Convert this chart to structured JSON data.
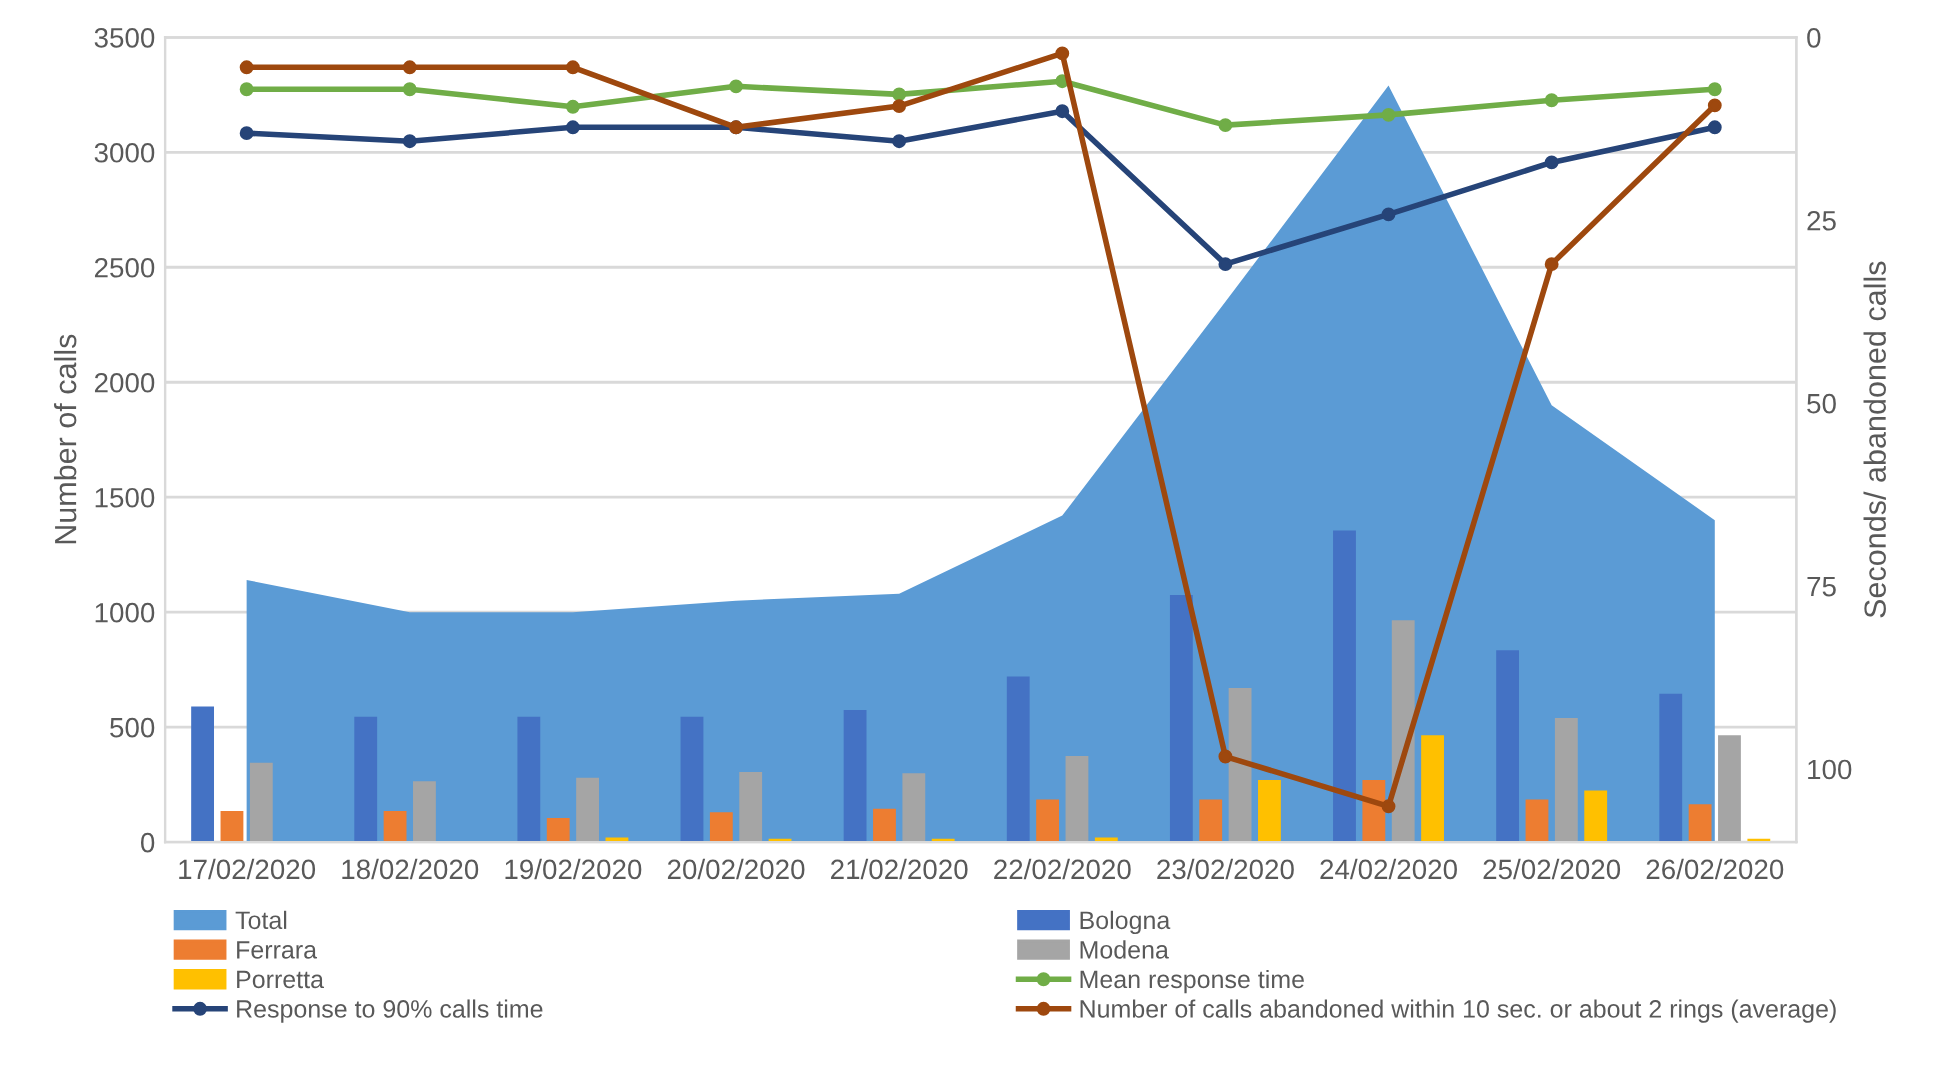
{
  "chart_data": {
    "type": "bar",
    "xlabel": null,
    "ylabel": "Number of calls",
    "y2label": "Seconds/ abandoned calls",
    "categories": [
      "17/02/2020",
      "18/02/2020",
      "19/02/2020",
      "20/02/2020",
      "21/02/2020",
      "22/02/2020",
      "23/02/2020",
      "24/02/2020",
      "25/02/2020",
      "26/02/2020"
    ],
    "series": [
      {
        "name": "Total",
        "type": "area",
        "color": "#5b9bd5",
        "values": [
          1140,
          1000,
          1000,
          1050,
          1080,
          1420,
          2350,
          3290,
          1900,
          1400
        ]
      },
      {
        "name": "Bologna",
        "color": "#4472c4",
        "values": [
          590,
          545,
          545,
          545,
          575,
          720,
          1075,
          1355,
          835,
          645
        ]
      },
      {
        "name": "Ferrara",
        "color": "#ed7d31",
        "values": [
          135,
          135,
          105,
          130,
          145,
          185,
          185,
          270,
          185,
          165
        ]
      },
      {
        "name": "Modena",
        "color": "#a5a5a5",
        "values": [
          345,
          265,
          280,
          305,
          300,
          375,
          670,
          965,
          540,
          465
        ]
      },
      {
        "name": "Porretta",
        "color": "#ffc000",
        "values": [
          5,
          5,
          20,
          15,
          15,
          20,
          270,
          465,
          225,
          15
        ]
      },
      {
        "name": "Mean response time",
        "type": "line",
        "axis": "y2",
        "color": "#70ad47",
        "marker": "circle",
        "values": [
          7.1,
          7.1,
          9.5,
          6.7,
          7.8,
          6.0,
          12.0,
          10.6,
          8.6,
          7.1
        ]
      },
      {
        "name": "Response to 90% calls time",
        "type": "line",
        "axis": "y2",
        "color": "#264478",
        "marker": "circle",
        "values": [
          13.1,
          14.2,
          12.3,
          12.3,
          14.2,
          10.1,
          31.0,
          24.2,
          17.1,
          12.3
        ]
      },
      {
        "name": "Number of calls abandoned within 10 sec. or about 2 rings (average)",
        "type": "line",
        "axis": "y2",
        "color": "#9e480e",
        "marker": "circle",
        "values": [
          4.1,
          4.1,
          4.1,
          12.3,
          9.4,
          2.2,
          98.3,
          105.1,
          31.0,
          9.3
        ]
      }
    ],
    "ylim": [
      0,
      3500
    ],
    "yticks": [
      0,
      500,
      1000,
      1500,
      2000,
      2500,
      3000,
      3500
    ],
    "y2lim": [
      110,
      0
    ],
    "y2ticks": [
      0,
      25,
      50,
      75,
      100
    ],
    "grid": "y",
    "legend": "bottom"
  }
}
